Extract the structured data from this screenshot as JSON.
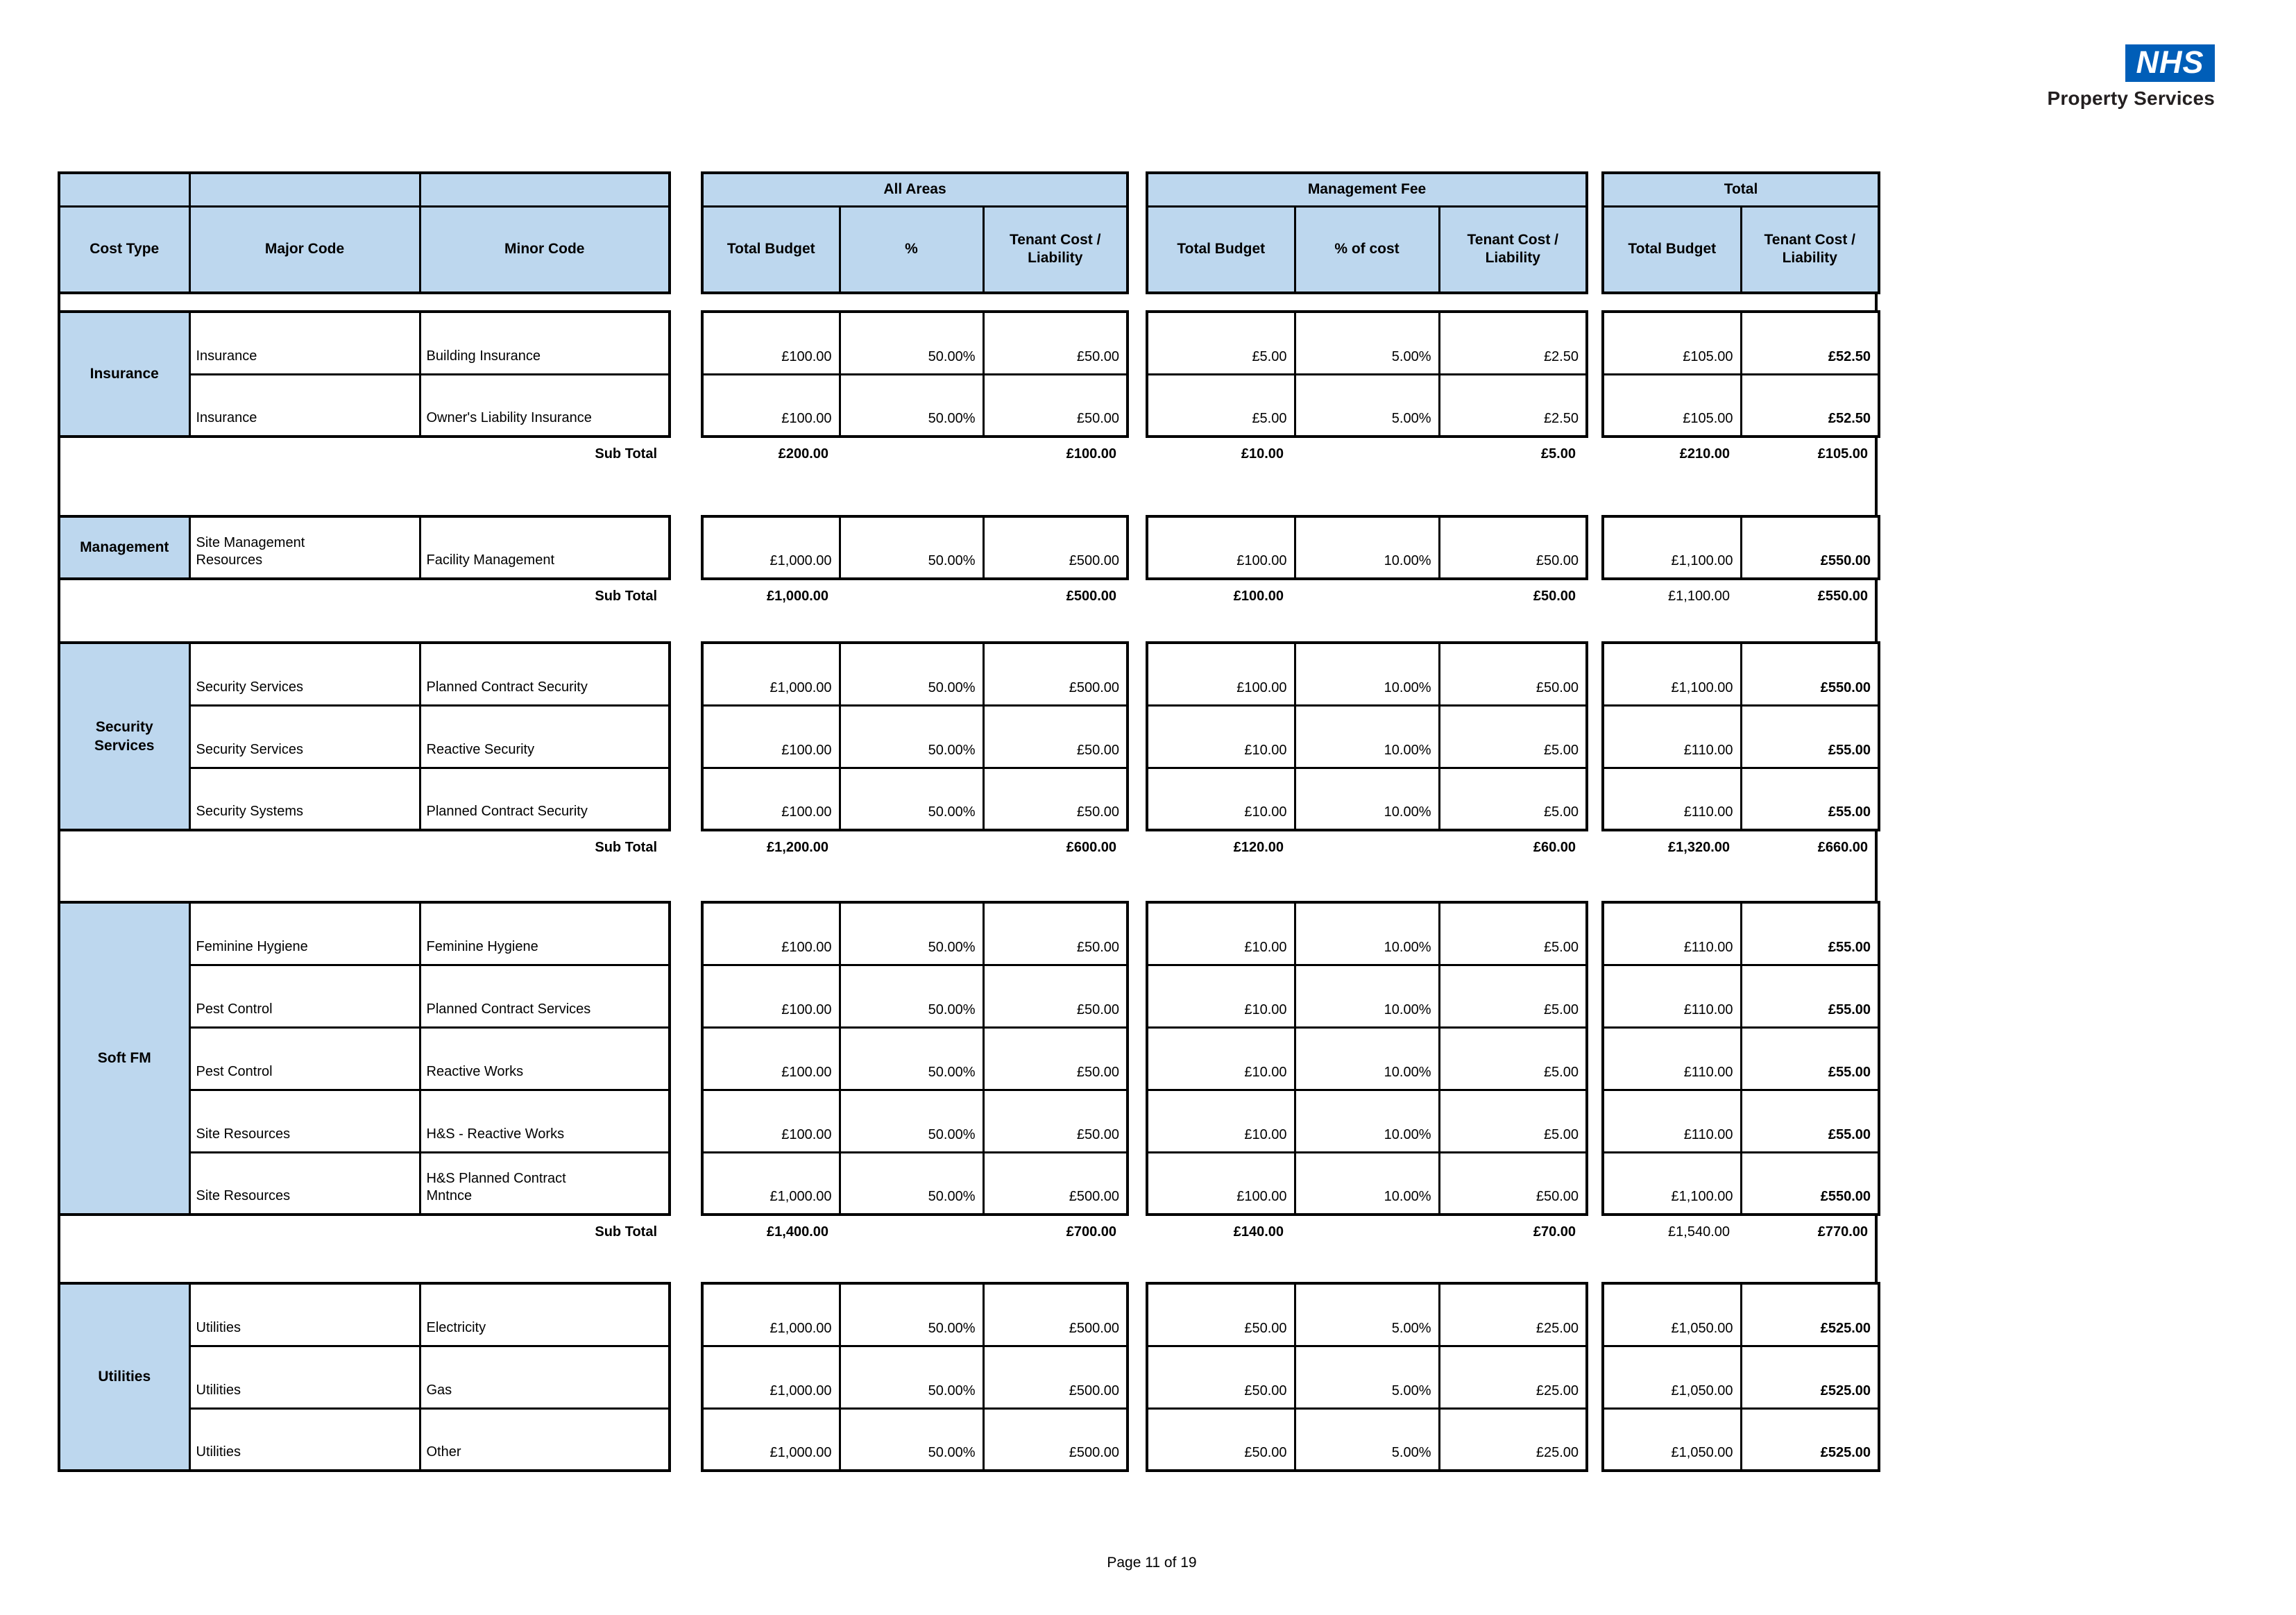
{
  "logo": {
    "nhs": "NHS",
    "subtitle": "Property Services"
  },
  "header": {
    "left_cols": [
      "Cost Type",
      "Major Code",
      "Minor Code"
    ],
    "groups": [
      {
        "label": "All Areas",
        "cols": [
          "Total Budget",
          "%",
          "Tenant Cost / Liability"
        ]
      },
      {
        "label": "Management Fee",
        "cols": [
          "Total Budget",
          "% of cost",
          "Tenant Cost / Liability"
        ]
      },
      {
        "label": "Total",
        "cols": [
          "Total Budget",
          "Tenant Cost / Liability"
        ]
      }
    ]
  },
  "sections": [
    {
      "cost_type": "Insurance",
      "rows": [
        {
          "major": "Insurance",
          "minor": "Building Insurance",
          "values": [
            "£100.00",
            "50.00%",
            "£50.00",
            "£5.00",
            "5.00%",
            "£2.50",
            "£105.00",
            "£52.50"
          ]
        },
        {
          "major": "Insurance",
          "minor": "Owner's Liability Insurance",
          "values": [
            "£100.00",
            "50.00%",
            "£50.00",
            "£5.00",
            "5.00%",
            "£2.50",
            "£105.00",
            "£52.50"
          ]
        }
      ],
      "subtotal": {
        "label": "Sub Total",
        "values": [
          "£200.00",
          "",
          "£100.00",
          "£10.00",
          "",
          "£5.00",
          "£210.00",
          "£105.00"
        ],
        "plain_cols": []
      }
    },
    {
      "cost_type": "Management",
      "rows": [
        {
          "major": "Site Management\nResources",
          "minor": "Facility Management",
          "values": [
            "£1,000.00",
            "50.00%",
            "£500.00",
            "£100.00",
            "10.00%",
            "£50.00",
            "£1,100.00",
            "£550.00"
          ]
        }
      ],
      "subtotal": {
        "label": "Sub Total",
        "values": [
          "£1,000.00",
          "",
          "£500.00",
          "£100.00",
          "",
          "£50.00",
          "£1,100.00",
          "£550.00"
        ],
        "plain_cols": [
          6
        ]
      }
    },
    {
      "cost_type": "Security\nServices",
      "rows": [
        {
          "major": "Security Services",
          "minor": "Planned Contract Security",
          "values": [
            "£1,000.00",
            "50.00%",
            "£500.00",
            "£100.00",
            "10.00%",
            "£50.00",
            "£1,100.00",
            "£550.00"
          ]
        },
        {
          "major": "Security Services",
          "minor": "Reactive Security",
          "values": [
            "£100.00",
            "50.00%",
            "£50.00",
            "£10.00",
            "10.00%",
            "£5.00",
            "£110.00",
            "£55.00"
          ]
        },
        {
          "major": "Security Systems",
          "minor": "Planned Contract Security",
          "values": [
            "£100.00",
            "50.00%",
            "£50.00",
            "£10.00",
            "10.00%",
            "£5.00",
            "£110.00",
            "£55.00"
          ]
        }
      ],
      "subtotal": {
        "label": "Sub Total",
        "values": [
          "£1,200.00",
          "",
          "£600.00",
          "£120.00",
          "",
          "£60.00",
          "£1,320.00",
          "£660.00"
        ],
        "plain_cols": []
      }
    },
    {
      "cost_type": "Soft FM",
      "rows": [
        {
          "major": "Feminine Hygiene",
          "minor": "Feminine Hygiene",
          "values": [
            "£100.00",
            "50.00%",
            "£50.00",
            "£10.00",
            "10.00%",
            "£5.00",
            "£110.00",
            "£55.00"
          ]
        },
        {
          "major": "Pest Control",
          "minor": "Planned Contract Services",
          "values": [
            "£100.00",
            "50.00%",
            "£50.00",
            "£10.00",
            "10.00%",
            "£5.00",
            "£110.00",
            "£55.00"
          ]
        },
        {
          "major": "Pest Control",
          "minor": "Reactive Works",
          "values": [
            "£100.00",
            "50.00%",
            "£50.00",
            "£10.00",
            "10.00%",
            "£5.00",
            "£110.00",
            "£55.00"
          ]
        },
        {
          "major": "Site Resources",
          "minor": "H&S - Reactive Works",
          "values": [
            "£100.00",
            "50.00%",
            "£50.00",
            "£10.00",
            "10.00%",
            "£5.00",
            "£110.00",
            "£55.00"
          ]
        },
        {
          "major": "Site Resources",
          "minor": "H&S Planned Contract\nMntnce",
          "values": [
            "£1,000.00",
            "50.00%",
            "£500.00",
            "£100.00",
            "10.00%",
            "£50.00",
            "£1,100.00",
            "£550.00"
          ]
        }
      ],
      "subtotal": {
        "label": "Sub Total",
        "values": [
          "£1,400.00",
          "",
          "£700.00",
          "£140.00",
          "",
          "£70.00",
          "£1,540.00",
          "£770.00"
        ],
        "plain_cols": [
          6
        ]
      }
    },
    {
      "cost_type": "Utilities",
      "rows": [
        {
          "major": "Utilities",
          "minor": "Electricity",
          "values": [
            "£1,000.00",
            "50.00%",
            "£500.00",
            "£50.00",
            "5.00%",
            "£25.00",
            "£1,050.00",
            "£525.00"
          ]
        },
        {
          "major": "Utilities",
          "minor": "Gas",
          "values": [
            "£1,000.00",
            "50.00%",
            "£500.00",
            "£50.00",
            "5.00%",
            "£25.00",
            "£1,050.00",
            "£525.00"
          ]
        },
        {
          "major": "Utilities",
          "minor": "Other",
          "values": [
            "£1,000.00",
            "50.00%",
            "£500.00",
            "£50.00",
            "5.00%",
            "£25.00",
            "£1,050.00",
            "£525.00"
          ]
        }
      ],
      "subtotal": null
    }
  ],
  "footer": {
    "page_label": "Page 11 of 19"
  }
}
